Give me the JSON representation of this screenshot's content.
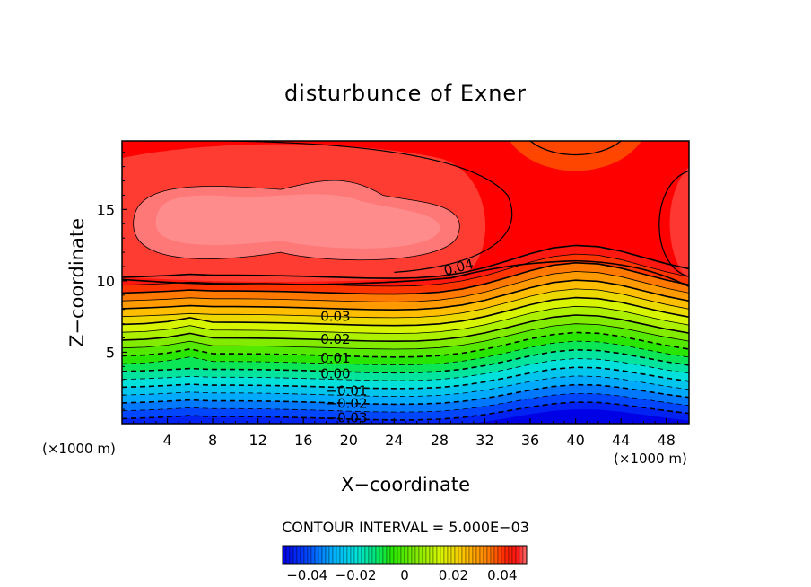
{
  "chart_data": {
    "type": "contour",
    "title": "disturbunce of Exner",
    "xlabel": "X−coordinate",
    "ylabel": "Z−coordinate",
    "x_unit": "(×1000 m)",
    "y_unit": "(×1000 m)",
    "x_range": [
      0,
      50
    ],
    "y_range": [
      0,
      19.8
    ],
    "x_ticks": [
      "4",
      "8",
      "12",
      "16",
      "20",
      "24",
      "28",
      "32",
      "36",
      "40",
      "44",
      "48"
    ],
    "y_ticks": [
      "5",
      "10",
      "15"
    ],
    "contour_labels": [
      "0.04",
      "0.03",
      "0.02",
      "0.01",
      "0.00",
      "−0.01",
      "−0.02",
      "−0.03"
    ],
    "contour_interval_text": "CONTOUR INTERVAL = 5.000E−03",
    "colorbar": {
      "range": [
        -0.05,
        0.05
      ],
      "tick_labels": [
        "−0.04",
        "−0.02",
        "0",
        "0.02",
        "0.04"
      ]
    }
  }
}
